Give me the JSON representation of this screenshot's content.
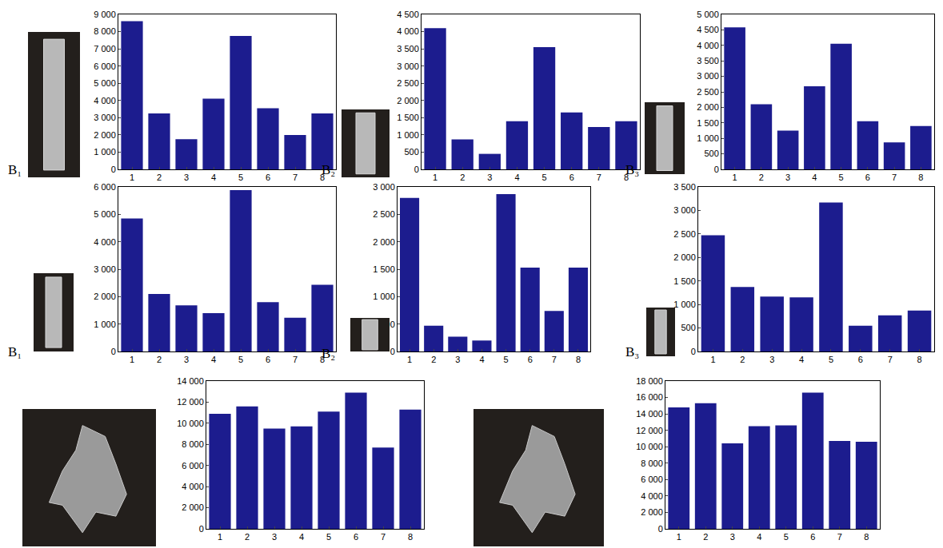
{
  "chart_data": [
    {
      "type": "bar",
      "annotation": "B₁",
      "x": [
        1,
        2,
        3,
        4,
        5,
        6,
        7,
        8
      ],
      "values": [
        8600,
        3250,
        1750,
        4100,
        7750,
        3550,
        2000,
        3250
      ],
      "color": "#1c1c8e",
      "xlim": [
        0.5,
        8.5
      ],
      "xticks": [
        1,
        2,
        3,
        4,
        5,
        6,
        7,
        8
      ],
      "ylim": [
        0,
        9000
      ],
      "yticks": [
        0,
        {
          "value": 1000,
          "label": "1 000"
        },
        {
          "value": 2000,
          "label": "2 000"
        },
        {
          "value": 3000,
          "label": "3 000"
        },
        {
          "value": 4000,
          "label": "4 000"
        },
        {
          "value": 5000,
          "label": "5 000"
        },
        {
          "value": 6000,
          "label": "6 000"
        },
        {
          "value": 7000,
          "label": "7 000"
        },
        {
          "value": 8000,
          "label": "8 000"
        },
        {
          "value": 9000,
          "label": "9 000"
        }
      ]
    },
    {
      "type": "bar",
      "annotation": "B₂",
      "x": [
        1,
        2,
        3,
        4,
        5,
        6,
        7,
        8
      ],
      "values": [
        4100,
        870,
        450,
        1400,
        3550,
        1650,
        1230,
        1400
      ],
      "color": "#1c1c8e",
      "xlim": [
        0.5,
        8.5
      ],
      "xticks": [
        1,
        2,
        3,
        4,
        5,
        6,
        7,
        8
      ],
      "ylim": [
        0,
        4500
      ],
      "yticks": [
        0,
        500,
        {
          "value": 1000,
          "label": "1 000"
        },
        {
          "value": 1500,
          "label": "1 500"
        },
        {
          "value": 2000,
          "label": "2 000"
        },
        {
          "value": 2500,
          "label": "2 500"
        },
        {
          "value": 3000,
          "label": "3 000"
        },
        {
          "value": 3500,
          "label": "3 500"
        },
        {
          "value": 4000,
          "label": "4 000"
        },
        {
          "value": 4500,
          "label": "4 500"
        }
      ]
    },
    {
      "type": "bar",
      "annotation": "B₃",
      "x": [
        1,
        2,
        3,
        4,
        5,
        6,
        7,
        8
      ],
      "values": [
        4580,
        2100,
        1250,
        2680,
        4050,
        1550,
        870,
        1400
      ],
      "color": "#1c1c8e",
      "xlim": [
        0.5,
        8.5
      ],
      "xticks": [
        1,
        2,
        3,
        4,
        5,
        6,
        7,
        8
      ],
      "ylim": [
        0,
        5000
      ],
      "yticks": [
        0,
        500,
        {
          "value": 1000,
          "label": "1 000"
        },
        {
          "value": 1500,
          "label": "1 500"
        },
        {
          "value": 2000,
          "label": "2 000"
        },
        {
          "value": 2500,
          "label": "2 500"
        },
        {
          "value": 3000,
          "label": "3 000"
        },
        {
          "value": 3500,
          "label": "3 500"
        },
        {
          "value": 4000,
          "label": "4 000"
        },
        {
          "value": 4500,
          "label": "4 500"
        },
        {
          "value": 5000,
          "label": "5 000"
        }
      ]
    },
    {
      "type": "bar",
      "annotation": "B₁",
      "x": [
        1,
        2,
        3,
        4,
        5,
        6,
        7,
        8
      ],
      "values": [
        4850,
        2100,
        1680,
        1400,
        5880,
        1800,
        1230,
        2430
      ],
      "color": "#1c1c8e",
      "xlim": [
        0.5,
        8.5
      ],
      "xticks": [
        1,
        2,
        3,
        4,
        5,
        6,
        7,
        8
      ],
      "ylim": [
        0,
        6000
      ],
      "yticks": [
        0,
        {
          "value": 1000,
          "label": "1 000"
        },
        {
          "value": 2000,
          "label": "2 000"
        },
        {
          "value": 3000,
          "label": "3 000"
        },
        {
          "value": 4000,
          "label": "4 000"
        },
        {
          "value": 5000,
          "label": "5 000"
        },
        {
          "value": 6000,
          "label": "6 000"
        }
      ]
    },
    {
      "type": "bar",
      "annotation": "B₂",
      "x": [
        1,
        2,
        3,
        4,
        5,
        6,
        7,
        8
      ],
      "values": [
        2800,
        470,
        270,
        200,
        2870,
        1530,
        740,
        1530
      ],
      "color": "#1c1c8e",
      "xlim": [
        0.5,
        8.5
      ],
      "xticks": [
        1,
        2,
        3,
        4,
        5,
        6,
        7,
        8
      ],
      "ylim": [
        0,
        3000
      ],
      "yticks": [
        0,
        500,
        {
          "value": 1000,
          "label": "1 000"
        },
        {
          "value": 1500,
          "label": "1 500"
        },
        {
          "value": 2000,
          "label": "2 000"
        },
        {
          "value": 2500,
          "label": "2 500"
        },
        {
          "value": 3000,
          "label": "3 000"
        }
      ]
    },
    {
      "type": "bar",
      "annotation": "B₃",
      "x": [
        1,
        2,
        3,
        4,
        5,
        6,
        7,
        8
      ],
      "values": [
        2470,
        1370,
        1170,
        1150,
        3170,
        550,
        770,
        870
      ],
      "color": "#1c1c8e",
      "xlim": [
        0.5,
        8.5
      ],
      "xticks": [
        1,
        2,
        3,
        4,
        5,
        6,
        7,
        8
      ],
      "ylim": [
        0,
        3500
      ],
      "yticks": [
        0,
        500,
        {
          "value": 1000,
          "label": "1 000"
        },
        {
          "value": 1500,
          "label": "1 500"
        },
        {
          "value": 2000,
          "label": "2 000"
        },
        {
          "value": 2500,
          "label": "2 500"
        },
        {
          "value": 3000,
          "label": "3 000"
        },
        {
          "value": 3500,
          "label": "3 500"
        }
      ]
    },
    {
      "type": "bar",
      "x": [
        1,
        2,
        3,
        4,
        5,
        6,
        7,
        8
      ],
      "values": [
        10900,
        11600,
        9500,
        9700,
        11100,
        12900,
        7700,
        11300
      ],
      "color": "#1c1c8e",
      "xlim": [
        0.5,
        8.5
      ],
      "xticks": [
        1,
        2,
        3,
        4,
        5,
        6,
        7,
        8
      ],
      "ylim": [
        0,
        14000
      ],
      "yticks": [
        0,
        {
          "value": 2000,
          "label": "2 000"
        },
        {
          "value": 4000,
          "label": "4 000"
        },
        {
          "value": 6000,
          "label": "6 000"
        },
        {
          "value": 8000,
          "label": "8 000"
        },
        {
          "value": 10000,
          "label": "10 000"
        },
        {
          "value": 12000,
          "label": "12 000"
        },
        {
          "value": 14000,
          "label": "14 000"
        }
      ]
    },
    {
      "type": "bar",
      "x": [
        1,
        2,
        3,
        4,
        5,
        6,
        7,
        8
      ],
      "values": [
        14800,
        15300,
        10400,
        12500,
        12600,
        16600,
        10700,
        10600
      ],
      "color": "#1c1c8e",
      "xlim": [
        0.5,
        8.5
      ],
      "xticks": [
        1,
        2,
        3,
        4,
        5,
        6,
        7,
        8
      ],
      "ylim": [
        0,
        18000
      ],
      "yticks": [
        0,
        {
          "value": 2000,
          "label": "2 000"
        },
        {
          "value": 4000,
          "label": "4 000"
        },
        {
          "value": 6000,
          "label": "6 000"
        },
        {
          "value": 8000,
          "label": "8 000"
        },
        {
          "value": 10000,
          "label": "10 000"
        },
        {
          "value": 12000,
          "label": "12 000"
        },
        {
          "value": 14000,
          "label": "14 000"
        },
        {
          "value": 16000,
          "label": "16 000"
        },
        {
          "value": 18000,
          "label": "18 000"
        }
      ]
    }
  ]
}
